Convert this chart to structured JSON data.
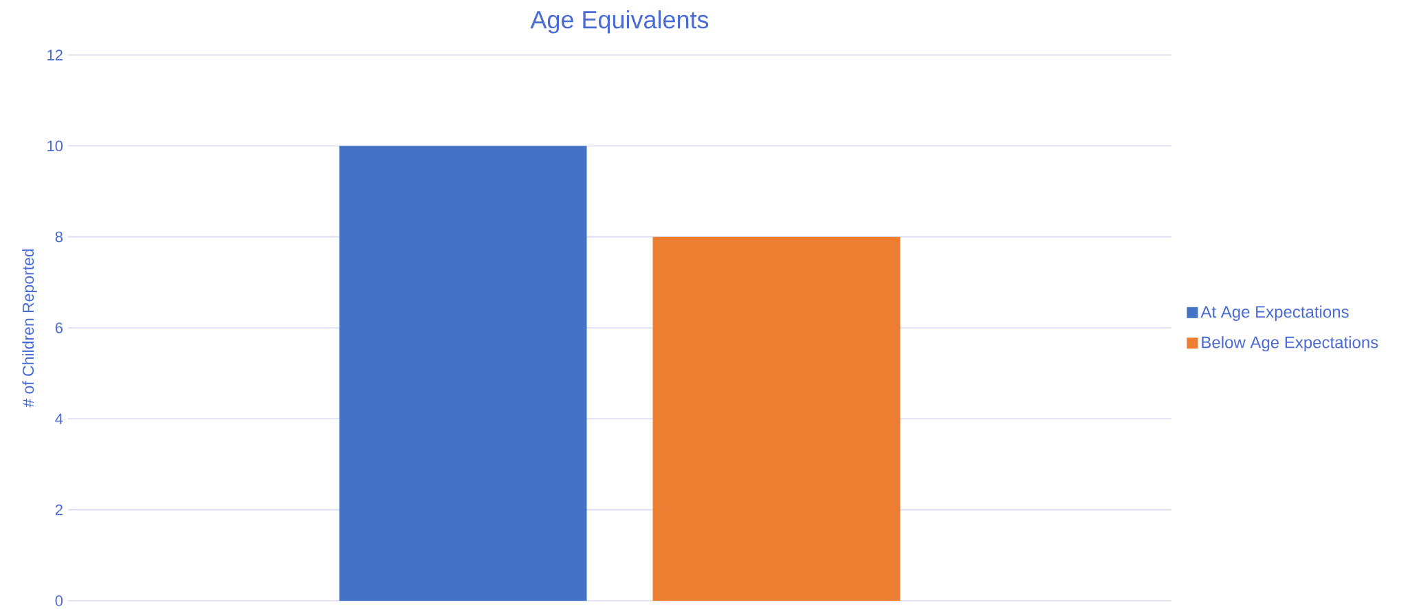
{
  "chart_data": {
    "type": "bar",
    "title": "Age Equivalents",
    "ylabel": "# of Children Reported",
    "categories": [
      null
    ],
    "series": [
      {
        "name": "At Age Expectations",
        "color": "#4472c4",
        "values": [
          10
        ]
      },
      {
        "name": "Below Age Expectations",
        "color": "#ed7d31",
        "values": [
          8
        ]
      }
    ],
    "ylim": [
      0,
      12
    ],
    "yticks": [
      0,
      2,
      4,
      6,
      8,
      10,
      12
    ],
    "grid": "y",
    "legend": "right"
  }
}
